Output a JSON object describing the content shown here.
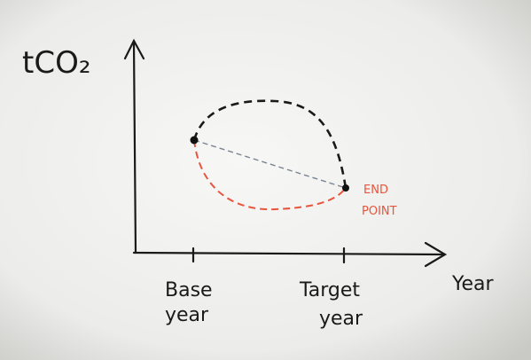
{
  "axes": {
    "y_label": "tCO₂",
    "x_label": "Year"
  },
  "x_markers": [
    {
      "lines": [
        "Base",
        "year"
      ]
    },
    {
      "lines": [
        "Target",
        "year"
      ]
    }
  ],
  "end_point_label": {
    "lines": [
      "END",
      "POINT"
    ]
  }
}
